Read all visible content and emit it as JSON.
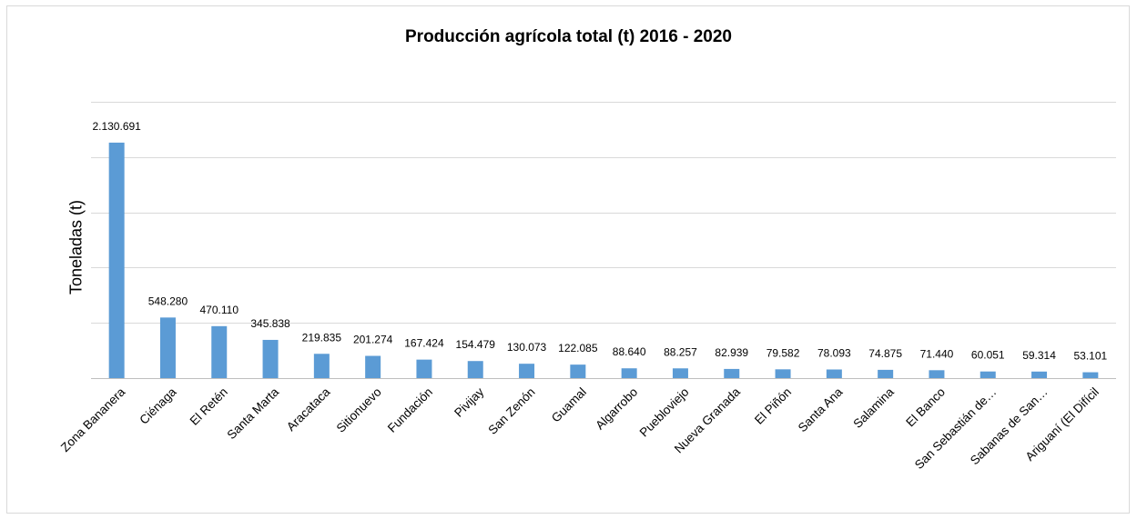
{
  "chart_data": {
    "type": "bar",
    "title": "Producción agrícola total (t) 2016 - 2020",
    "xlabel": "",
    "ylabel": "Toneladas (t)",
    "ylim": [
      0,
      2500000
    ],
    "grid": true,
    "legend": "none",
    "bar_color": "#5b9bd5",
    "categories": [
      "Zona Bananera",
      "Ciénaga",
      "El Retén",
      "Santa Marta",
      "Aracataca",
      "Sitionuevo",
      "Fundación",
      "Pivijay",
      "San Zenón",
      "Guamal",
      "Algarrobo",
      "Puebloviejo",
      "Nueva Granada",
      "El Piñón",
      "Santa Ana",
      "Salamina",
      "El Banco",
      "San Sebastián de…",
      "Sabanas de San…",
      "Ariguaní (El Difícil"
    ],
    "values": [
      2130691,
      548280,
      470110,
      345838,
      219835,
      201274,
      167424,
      154479,
      130073,
      122085,
      88640,
      88257,
      82939,
      79582,
      78093,
      74875,
      71440,
      60051,
      59314,
      53101
    ],
    "data_labels": [
      "2.130.691",
      "548.280",
      "470.110",
      "345.838",
      "219.835",
      "201.274",
      "167.424",
      "154.479",
      "130.073",
      "122.085",
      "88.640",
      "88.257",
      "82.939",
      "79.582",
      "78.093",
      "74.875",
      "71.440",
      "60.051",
      "59.314",
      "53.101"
    ]
  }
}
